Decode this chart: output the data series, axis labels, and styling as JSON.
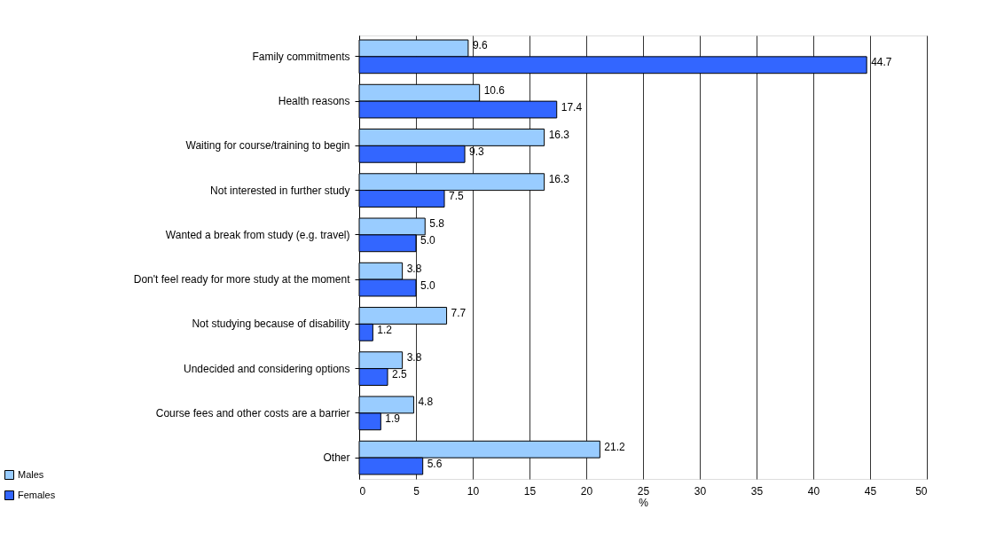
{
  "chart_data": {
    "type": "bar",
    "orientation": "horizontal",
    "xlabel": "%",
    "categories": [
      "Family commitments",
      "Health reasons",
      "Waiting for course/training to begin",
      "Not interested in further study",
      "Wanted a break from study (e.g. travel)",
      "Don't feel ready for more study at the moment",
      "Not studying because of disability",
      "Undecided and considering options",
      "Course fees and other costs are a barrier",
      "Other"
    ],
    "series": [
      {
        "name": "Males",
        "color": "#99ccff",
        "values": [
          9.6,
          10.6,
          16.3,
          16.3,
          5.8,
          3.8,
          7.7,
          3.8,
          4.8,
          21.2
        ],
        "value_labels": [
          "9.6",
          "10.6",
          "16.3",
          "16.3",
          "5.8",
          "3.8",
          "7.7",
          "3.8",
          "4.8",
          "21.2"
        ]
      },
      {
        "name": "Females",
        "color": "#3366ff",
        "values": [
          44.7,
          17.4,
          9.3,
          7.5,
          5.0,
          5.0,
          1.2,
          2.5,
          1.9,
          5.6
        ],
        "value_labels": [
          "44.7",
          "17.4",
          "9.3",
          "7.5",
          "5.0",
          "5.0",
          "1.2",
          "2.5",
          "1.9",
          "5.6"
        ]
      }
    ],
    "xlim": [
      0,
      50
    ],
    "xticks": [
      0,
      5,
      10,
      15,
      20,
      25,
      30,
      35,
      40,
      45,
      50
    ],
    "grid": "x",
    "legend": "bottom left"
  }
}
